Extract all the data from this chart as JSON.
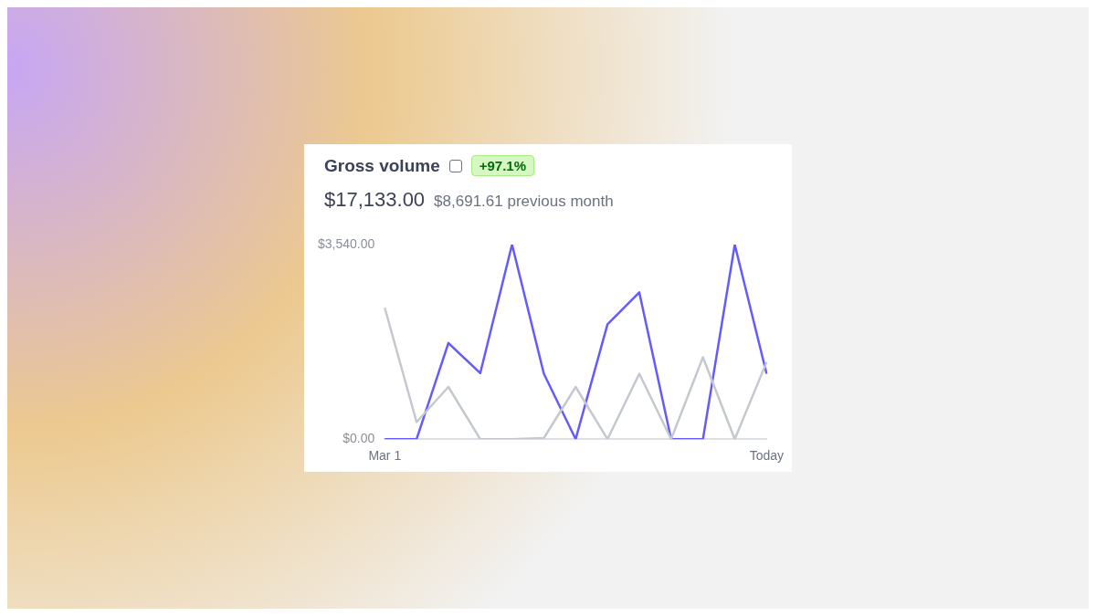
{
  "chart_data": {
    "type": "line",
    "title": "Gross volume",
    "subtitle": "$17,133.00",
    "annotations": [
      "+97.1%",
      "$8,691.61 previous month"
    ],
    "categories": [
      "Mar 1",
      null,
      null,
      null,
      null,
      null,
      null,
      null,
      null,
      null,
      null,
      null,
      "Today"
    ],
    "series": [
      {
        "color": "#c4c8cf",
        "values": [
          2390,
          310,
          950,
          0,
          0,
          20,
          950,
          0,
          1190,
          0,
          1490,
          0,
          1400
        ]
      },
      {
        "color": "#635bff",
        "values": [
          0,
          0,
          1750,
          1200,
          3540,
          1190,
          0,
          2090,
          2670,
          0,
          0,
          3540,
          1190
        ]
      }
    ],
    "ylim": [
      0,
      3540
    ],
    "yticks": [
      {
        "value": 0,
        "label": "$0.00"
      },
      {
        "value": 3540,
        "label": "$3,540.00"
      }
    ],
    "grid": false,
    "legend": false,
    "marker": "none",
    "line_style": "solid"
  }
}
